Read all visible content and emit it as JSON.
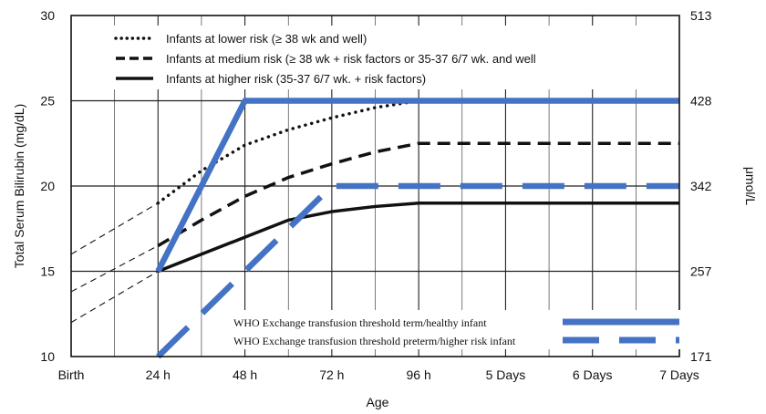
{
  "chart_data": {
    "type": "line",
    "xlabel": "Age",
    "ylabel": "Total Serum Bilirubin (mg/dL)",
    "y2label": "μmol/L",
    "categories": [
      "Birth",
      "24 h",
      "48 h",
      "72 h",
      "96 h",
      "5 Days",
      "6 Days",
      "7 Days"
    ],
    "ylim": [
      10,
      30
    ],
    "yticks": [
      10,
      15,
      20,
      25,
      30
    ],
    "y2ticks": [
      "171",
      "257",
      "342",
      "428",
      "513"
    ],
    "grid": true,
    "series": [
      {
        "name": "Infants at lower risk (≥ 38 wk and well)",
        "style": "dotted",
        "color": "#111111",
        "x": [
          1,
          1.5,
          2,
          2.5,
          3,
          3.5,
          4,
          5,
          6,
          7
        ],
        "y": [
          19,
          20.9,
          22.4,
          23.3,
          24,
          24.6,
          25,
          25,
          25,
          25
        ]
      },
      {
        "name": "Infants at medium risk (≥ 38 wk + risk factors or 35-37 6/7 wk. and well",
        "style": "dashed",
        "color": "#111111",
        "x": [
          1,
          1.5,
          2,
          2.5,
          3,
          3.5,
          4,
          5,
          6,
          7
        ],
        "y": [
          16.5,
          18,
          19.4,
          20.5,
          21.3,
          22,
          22.5,
          22.5,
          22.5,
          22.5
        ]
      },
      {
        "name": "Infants at higher risk (35-37 6/7 wk. + risk factors)",
        "style": "solid",
        "color": "#111111",
        "x": [
          1,
          1.5,
          2,
          2.5,
          3,
          3.5,
          4,
          5,
          6,
          7
        ],
        "y": [
          15,
          16,
          17,
          18,
          18.5,
          18.8,
          19,
          19,
          19,
          19
        ]
      },
      {
        "name": "WHO Exchange transfusion threshold term/healthy infant",
        "style": "thick-solid",
        "color": "#4472c4",
        "x": [
          1,
          2,
          7
        ],
        "y": [
          15,
          25,
          25
        ]
      },
      {
        "name": "WHO Exchange transfusion threshold preterm/higher risk infant",
        "style": "thick-dashed",
        "color": "#4472c4",
        "x": [
          1,
          3,
          7
        ],
        "y": [
          10,
          20,
          20
        ]
      }
    ],
    "extrapolations": [
      {
        "style": "thin-dashed",
        "x": [
          0,
          1
        ],
        "y": [
          16,
          19
        ]
      },
      {
        "style": "thin-dashed",
        "x": [
          0,
          1
        ],
        "y": [
          13.8,
          16.5
        ]
      },
      {
        "style": "thin-dashed",
        "x": [
          0,
          1
        ],
        "y": [
          12,
          15
        ]
      }
    ]
  }
}
